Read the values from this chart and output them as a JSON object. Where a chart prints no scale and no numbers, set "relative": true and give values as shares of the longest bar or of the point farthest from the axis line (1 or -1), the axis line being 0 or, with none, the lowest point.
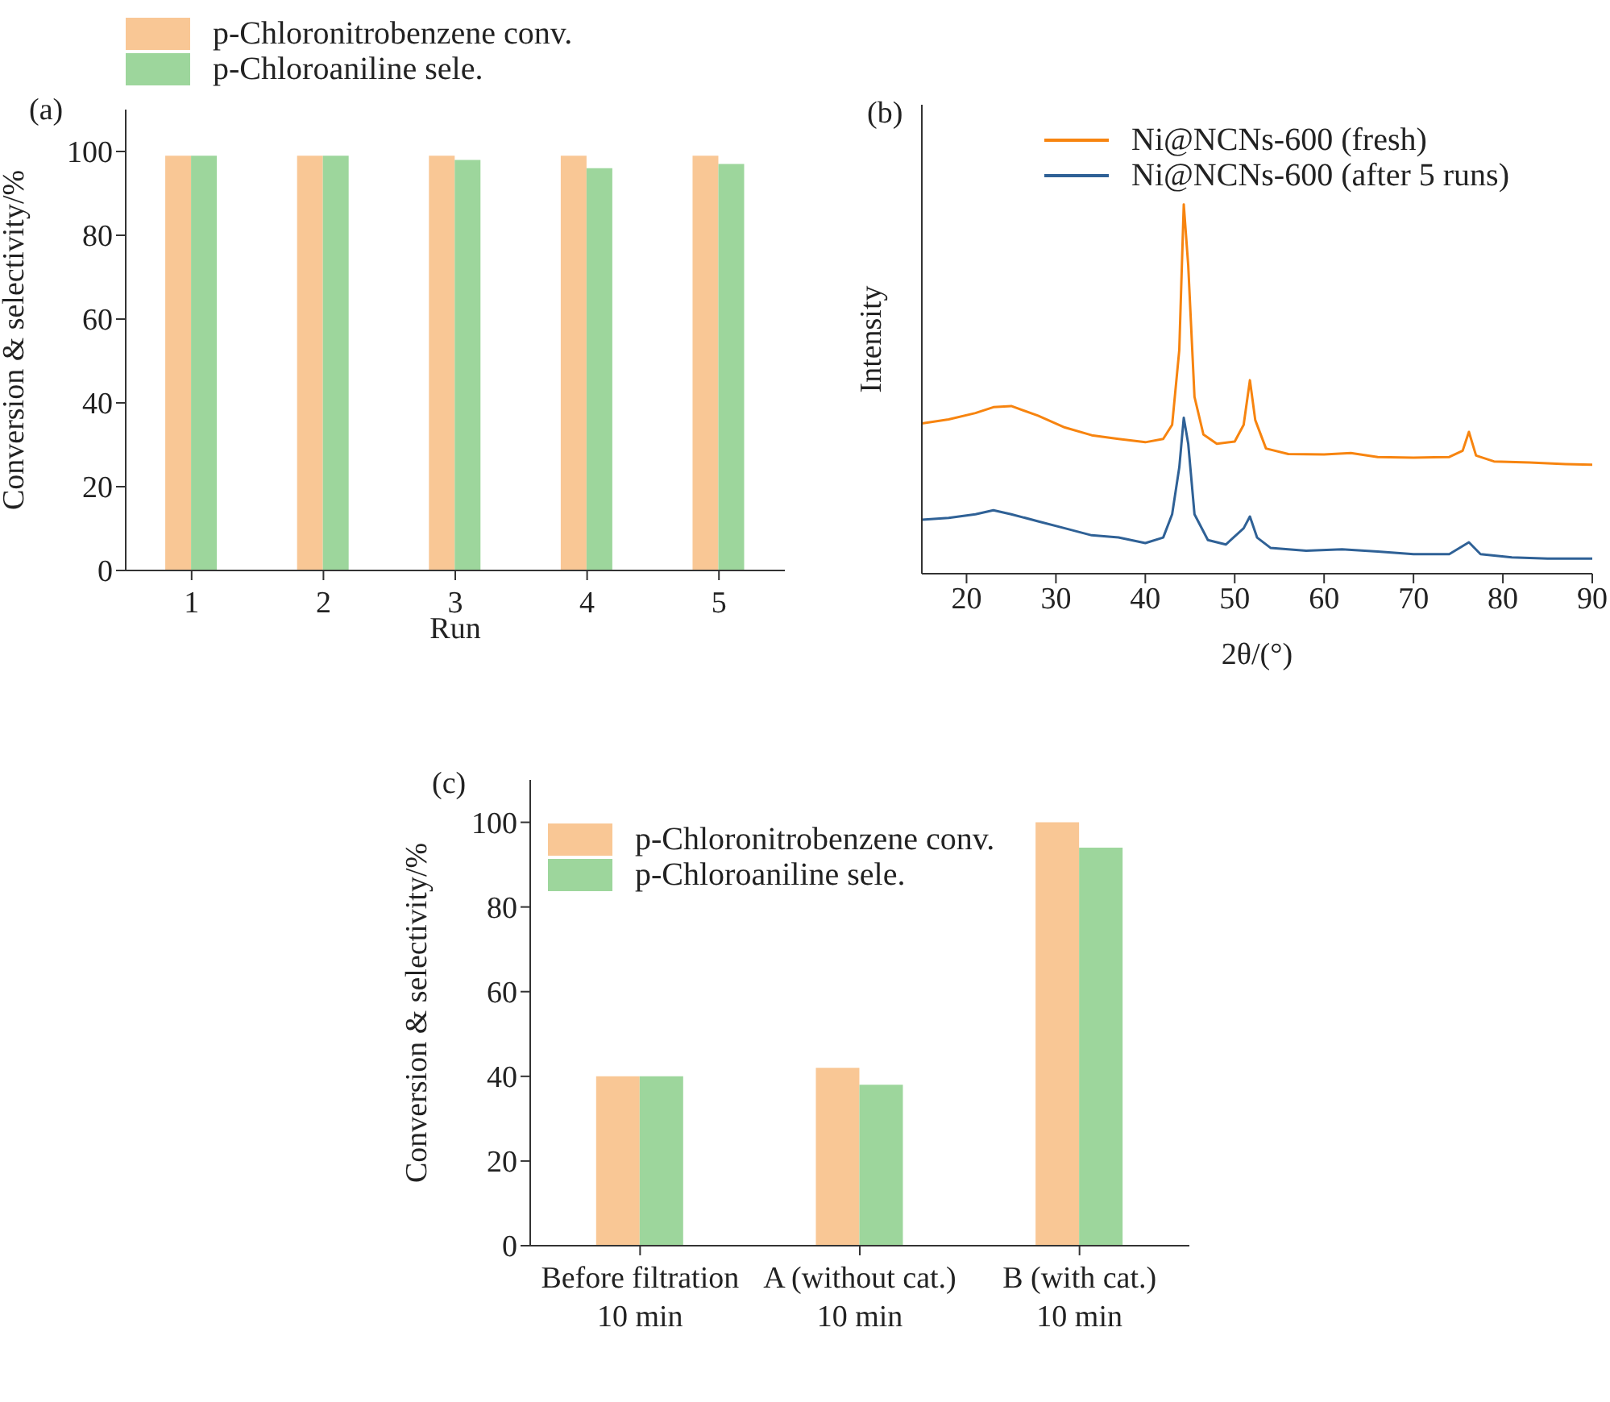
{
  "chart_data": [
    {
      "type": "bar",
      "annotations": [
        "(a)"
      ],
      "xlabel": "Run",
      "ylabel": "Conversion & selectivity/%",
      "categories": [
        "1",
        "2",
        "3",
        "4",
        "5"
      ],
      "ylim": [
        0,
        110
      ],
      "yticks": [
        0,
        20,
        40,
        60,
        80,
        100
      ],
      "legend": "top left",
      "series": [
        {
          "name": "p-Chloronitrobenzene conv.",
          "color": "#f9c795",
          "values": [
            99,
            99,
            99,
            99,
            99
          ]
        },
        {
          "name": "p-Chloroaniline sele.",
          "color": "#9dd69c",
          "values": [
            99,
            99,
            98,
            96,
            97
          ]
        }
      ]
    },
    {
      "type": "line",
      "relative": true,
      "annotations": [
        "(b)"
      ],
      "xlabel": "2θ/(°)",
      "ylabel": "Intensity",
      "xlim": [
        15,
        90
      ],
      "xticks": [
        20,
        30,
        40,
        50,
        60,
        70,
        80,
        90
      ],
      "tick_labels": "x",
      "legend": "top right",
      "marker": "none",
      "series": [
        {
          "name": "Ni@NCNs-600 (fresh)",
          "color": "#f7840f",
          "x": [
            15,
            18,
            21,
            23,
            25,
            28,
            31,
            34,
            37,
            40,
            42,
            43,
            43.8,
            44.3,
            44.8,
            45.5,
            46.5,
            48,
            50,
            51,
            51.7,
            52.3,
            53.5,
            56,
            60,
            63,
            66,
            70,
            74,
            75.5,
            76.2,
            77,
            79,
            83,
            87,
            90
          ],
          "values": [
            0.407,
            0.418,
            0.435,
            0.451,
            0.454,
            0.428,
            0.396,
            0.375,
            0.365,
            0.356,
            0.365,
            0.403,
            0.606,
            1,
            0.835,
            0.479,
            0.377,
            0.352,
            0.358,
            0.403,
            0.524,
            0.416,
            0.339,
            0.324,
            0.323,
            0.327,
            0.316,
            0.314,
            0.316,
            0.333,
            0.384,
            0.32,
            0.304,
            0.301,
            0.297,
            0.295
          ]
        },
        {
          "name": "Ni@NCNs-600 (after 5 runs)",
          "color": "#2f6196",
          "x": [
            15,
            18,
            21,
            23,
            25,
            28,
            31,
            34,
            37,
            40,
            42,
            43,
            43.8,
            44.3,
            44.8,
            45.5,
            47,
            49,
            51,
            51.7,
            52.5,
            54,
            58,
            62,
            66,
            70,
            74,
            76.2,
            77.5,
            81,
            85,
            90
          ],
          "values": [
            0.146,
            0.151,
            0.161,
            0.172,
            0.161,
            0.142,
            0.123,
            0.104,
            0.098,
            0.083,
            0.098,
            0.161,
            0.288,
            0.422,
            0.352,
            0.161,
            0.091,
            0.079,
            0.123,
            0.155,
            0.098,
            0.07,
            0.062,
            0.066,
            0.06,
            0.053,
            0.053,
            0.085,
            0.053,
            0.044,
            0.041,
            0.041
          ]
        }
      ]
    },
    {
      "type": "bar",
      "annotations": [
        "(c)"
      ],
      "ylabel": "Conversion & selectivity/%",
      "categories": [
        "Before filtration\n10 min",
        "A (without cat.)\n10 min",
        "B (with cat.)\n10 min"
      ],
      "ylim": [
        0,
        110
      ],
      "yticks": [
        0,
        20,
        40,
        60,
        80,
        100
      ],
      "legend": "top left",
      "series": [
        {
          "name": "p-Chloronitrobenzene conv.",
          "color": "#f9c795",
          "values": [
            40,
            42,
            100
          ]
        },
        {
          "name": "p-Chloroaniline sele.",
          "color": "#9dd69c",
          "values": [
            40,
            38,
            94
          ]
        }
      ]
    }
  ]
}
